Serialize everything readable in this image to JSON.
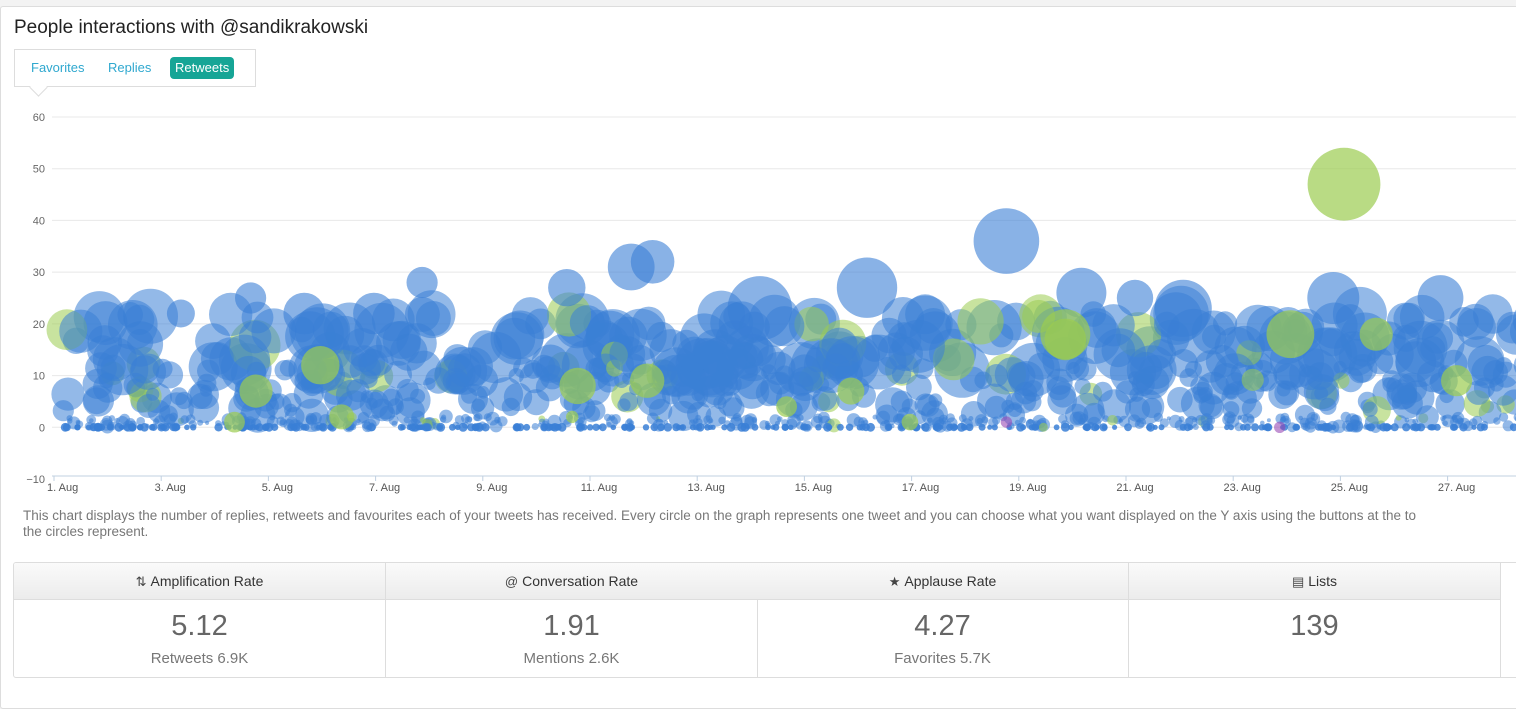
{
  "header": {
    "title": "People interactions with @sandikrakowski"
  },
  "tabs": [
    {
      "label": "Favorites",
      "active": false
    },
    {
      "label": "Replies",
      "active": false
    },
    {
      "label": "Retweets",
      "active": true
    }
  ],
  "chart_data": {
    "type": "scatter",
    "subtype": "bubble",
    "y_ticks": [
      "60",
      "50",
      "40",
      "30",
      "20",
      "10",
      "0",
      "−10"
    ],
    "ylim": [
      -10,
      60
    ],
    "x_ticks": [
      "1. Aug",
      "3. Aug",
      "5. Aug",
      "7. Aug",
      "9. Aug",
      "11. Aug",
      "13. Aug",
      "15. Aug",
      "17. Aug",
      "19. Aug",
      "21. Aug",
      "23. Aug",
      "25. Aug",
      "27. Aug"
    ],
    "xlim_days": [
      0.8,
      28.9
    ],
    "colors": {
      "blue": "#3a7fd6",
      "green": "#9bcc50",
      "purple": "#9a4bb5"
    },
    "bubbles": [
      [
        18.6,
        36,
        6.3,
        "blue"
      ],
      [
        24.9,
        47,
        7.0,
        "green"
      ],
      [
        16.0,
        27,
        5.8,
        "blue"
      ],
      [
        14.0,
        23,
        6.2,
        "blue"
      ],
      [
        11.6,
        31,
        4.5,
        "blue"
      ],
      [
        12.0,
        32,
        4.2,
        "blue"
      ],
      [
        7.7,
        28,
        3.0,
        "blue"
      ],
      [
        10.4,
        27,
        3.6,
        "blue"
      ],
      [
        4.5,
        25,
        3.0,
        "blue"
      ],
      [
        24.7,
        25,
        5.0,
        "blue"
      ],
      [
        26.7,
        25,
        4.4,
        "blue"
      ],
      [
        20.0,
        26,
        4.8,
        "blue"
      ],
      [
        21.0,
        25,
        3.5,
        "blue"
      ],
      [
        5.5,
        22,
        4.0,
        "blue"
      ],
      [
        3.2,
        22,
        2.7,
        "blue"
      ],
      [
        6.8,
        22,
        4.0,
        "blue"
      ],
      [
        21.9,
        23,
        5.5,
        "blue"
      ],
      [
        19.7,
        18,
        4.8,
        "green"
      ],
      [
        19.7,
        17,
        4.0,
        "green"
      ],
      [
        23.9,
        18,
        4.6,
        "green"
      ],
      [
        25.5,
        18,
        3.2,
        "green"
      ],
      [
        5.8,
        12,
        3.7,
        "green"
      ],
      [
        10.6,
        8,
        3.5,
        "green"
      ],
      [
        11.9,
        9,
        3.3,
        "green"
      ],
      [
        15.7,
        7,
        2.6,
        "green"
      ],
      [
        4.6,
        7,
        3.2,
        "green"
      ],
      [
        27.0,
        9,
        3.0,
        "green"
      ],
      [
        6.2,
        2,
        2.4,
        "green"
      ],
      [
        4.2,
        1,
        2.0,
        "green"
      ],
      [
        14.5,
        4,
        2.0,
        "green"
      ],
      [
        16.8,
        1,
        1.6,
        "green"
      ],
      [
        10.5,
        2,
        1.2,
        "green"
      ],
      [
        18.6,
        1,
        1.1,
        "purple"
      ],
      [
        23.7,
        0,
        1.1,
        "purple"
      ]
    ]
  },
  "description": {
    "line1": "This chart displays the number of replies, retweets and favourites each of your tweets has received. Every circle on the graph represents one tweet and you can choose what you want displayed on the Y axis using the buttons at the to",
    "line2": "the circles represent."
  },
  "stats": [
    {
      "icon": "retweet-icon",
      "glyph": "⇅",
      "label": "Amplification Rate",
      "value": "5.12",
      "sub": "Retweets 6.9K"
    },
    {
      "icon": "at-icon",
      "glyph": "@",
      "label": "Conversation Rate",
      "value": "1.91",
      "sub": "Mentions 2.6K"
    },
    {
      "icon": "star-icon",
      "glyph": "★",
      "label": "Applause Rate",
      "value": "4.27",
      "sub": "Favorites 5.7K"
    },
    {
      "icon": "clipboard-icon",
      "glyph": "▤",
      "label": "Lists",
      "value": "139",
      "sub": ""
    }
  ]
}
